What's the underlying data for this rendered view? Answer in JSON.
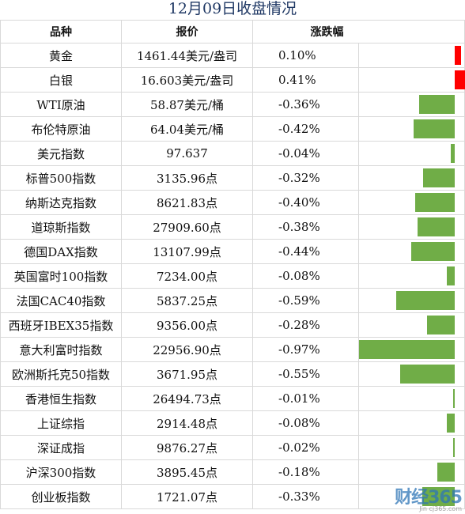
{
  "title": "12月09日收盘情况",
  "headers": {
    "name": "品种",
    "price": "报价",
    "change": "涨跌幅"
  },
  "rows": [
    {
      "name": "黄金",
      "price": "1461.44美元/盎司",
      "change": "0.10%",
      "value": 0.1
    },
    {
      "name": "白银",
      "price": "16.603美元/盎司",
      "change": "0.41%",
      "value": 0.41
    },
    {
      "name": "WTI原油",
      "price": "58.87美元/桶",
      "change": "-0.36%",
      "value": -0.36
    },
    {
      "name": "布伦特原油",
      "price": "64.04美元/桶",
      "change": "-0.42%",
      "value": -0.42
    },
    {
      "name": "美元指数",
      "price": "97.637",
      "change": "-0.04%",
      "value": -0.04
    },
    {
      "name": "标普500指数",
      "price": "3135.96点",
      "change": "-0.32%",
      "value": -0.32
    },
    {
      "name": "纳斯达克指数",
      "price": "8621.83点",
      "change": "-0.40%",
      "value": -0.4
    },
    {
      "name": "道琼斯指数",
      "price": "27909.60点",
      "change": "-0.38%",
      "value": -0.38
    },
    {
      "name": "德国DAX指数",
      "price": "13107.99点",
      "change": "-0.44%",
      "value": -0.44
    },
    {
      "name": "英国富时100指数",
      "price": "7234.00点",
      "change": "-0.08%",
      "value": -0.08
    },
    {
      "name": "法国CAC40指数",
      "price": "5837.25点",
      "change": "-0.59%",
      "value": -0.59
    },
    {
      "name": "西班牙IBEX35指数",
      "price": "9356.00点",
      "change": "-0.28%",
      "value": -0.28
    },
    {
      "name": "意大利富时指数",
      "price": "22956.90点",
      "change": "-0.97%",
      "value": -0.97
    },
    {
      "name": "欧洲斯托克50指数",
      "price": "3671.95点",
      "change": "-0.55%",
      "value": -0.55
    },
    {
      "name": "香港恒生指数",
      "price": "26494.73点",
      "change": "-0.01%",
      "value": -0.01
    },
    {
      "name": "上证综指",
      "price": "2914.48点",
      "change": "-0.08%",
      "value": -0.08
    },
    {
      "name": "深证成指",
      "price": "9876.27点",
      "change": "-0.02%",
      "value": -0.02
    },
    {
      "name": "沪深300指数",
      "price": "3895.45点",
      "change": "-0.18%",
      "value": -0.18
    },
    {
      "name": "创业板指数",
      "price": "1721.07点",
      "change": "-0.33%",
      "value": -0.33
    }
  ],
  "colors": {
    "negative": "#70ad47",
    "positive": "#ff0000",
    "title": "#1f3864"
  },
  "watermark": {
    "main": "财经365",
    "sub": "Jin cj365.com"
  }
}
